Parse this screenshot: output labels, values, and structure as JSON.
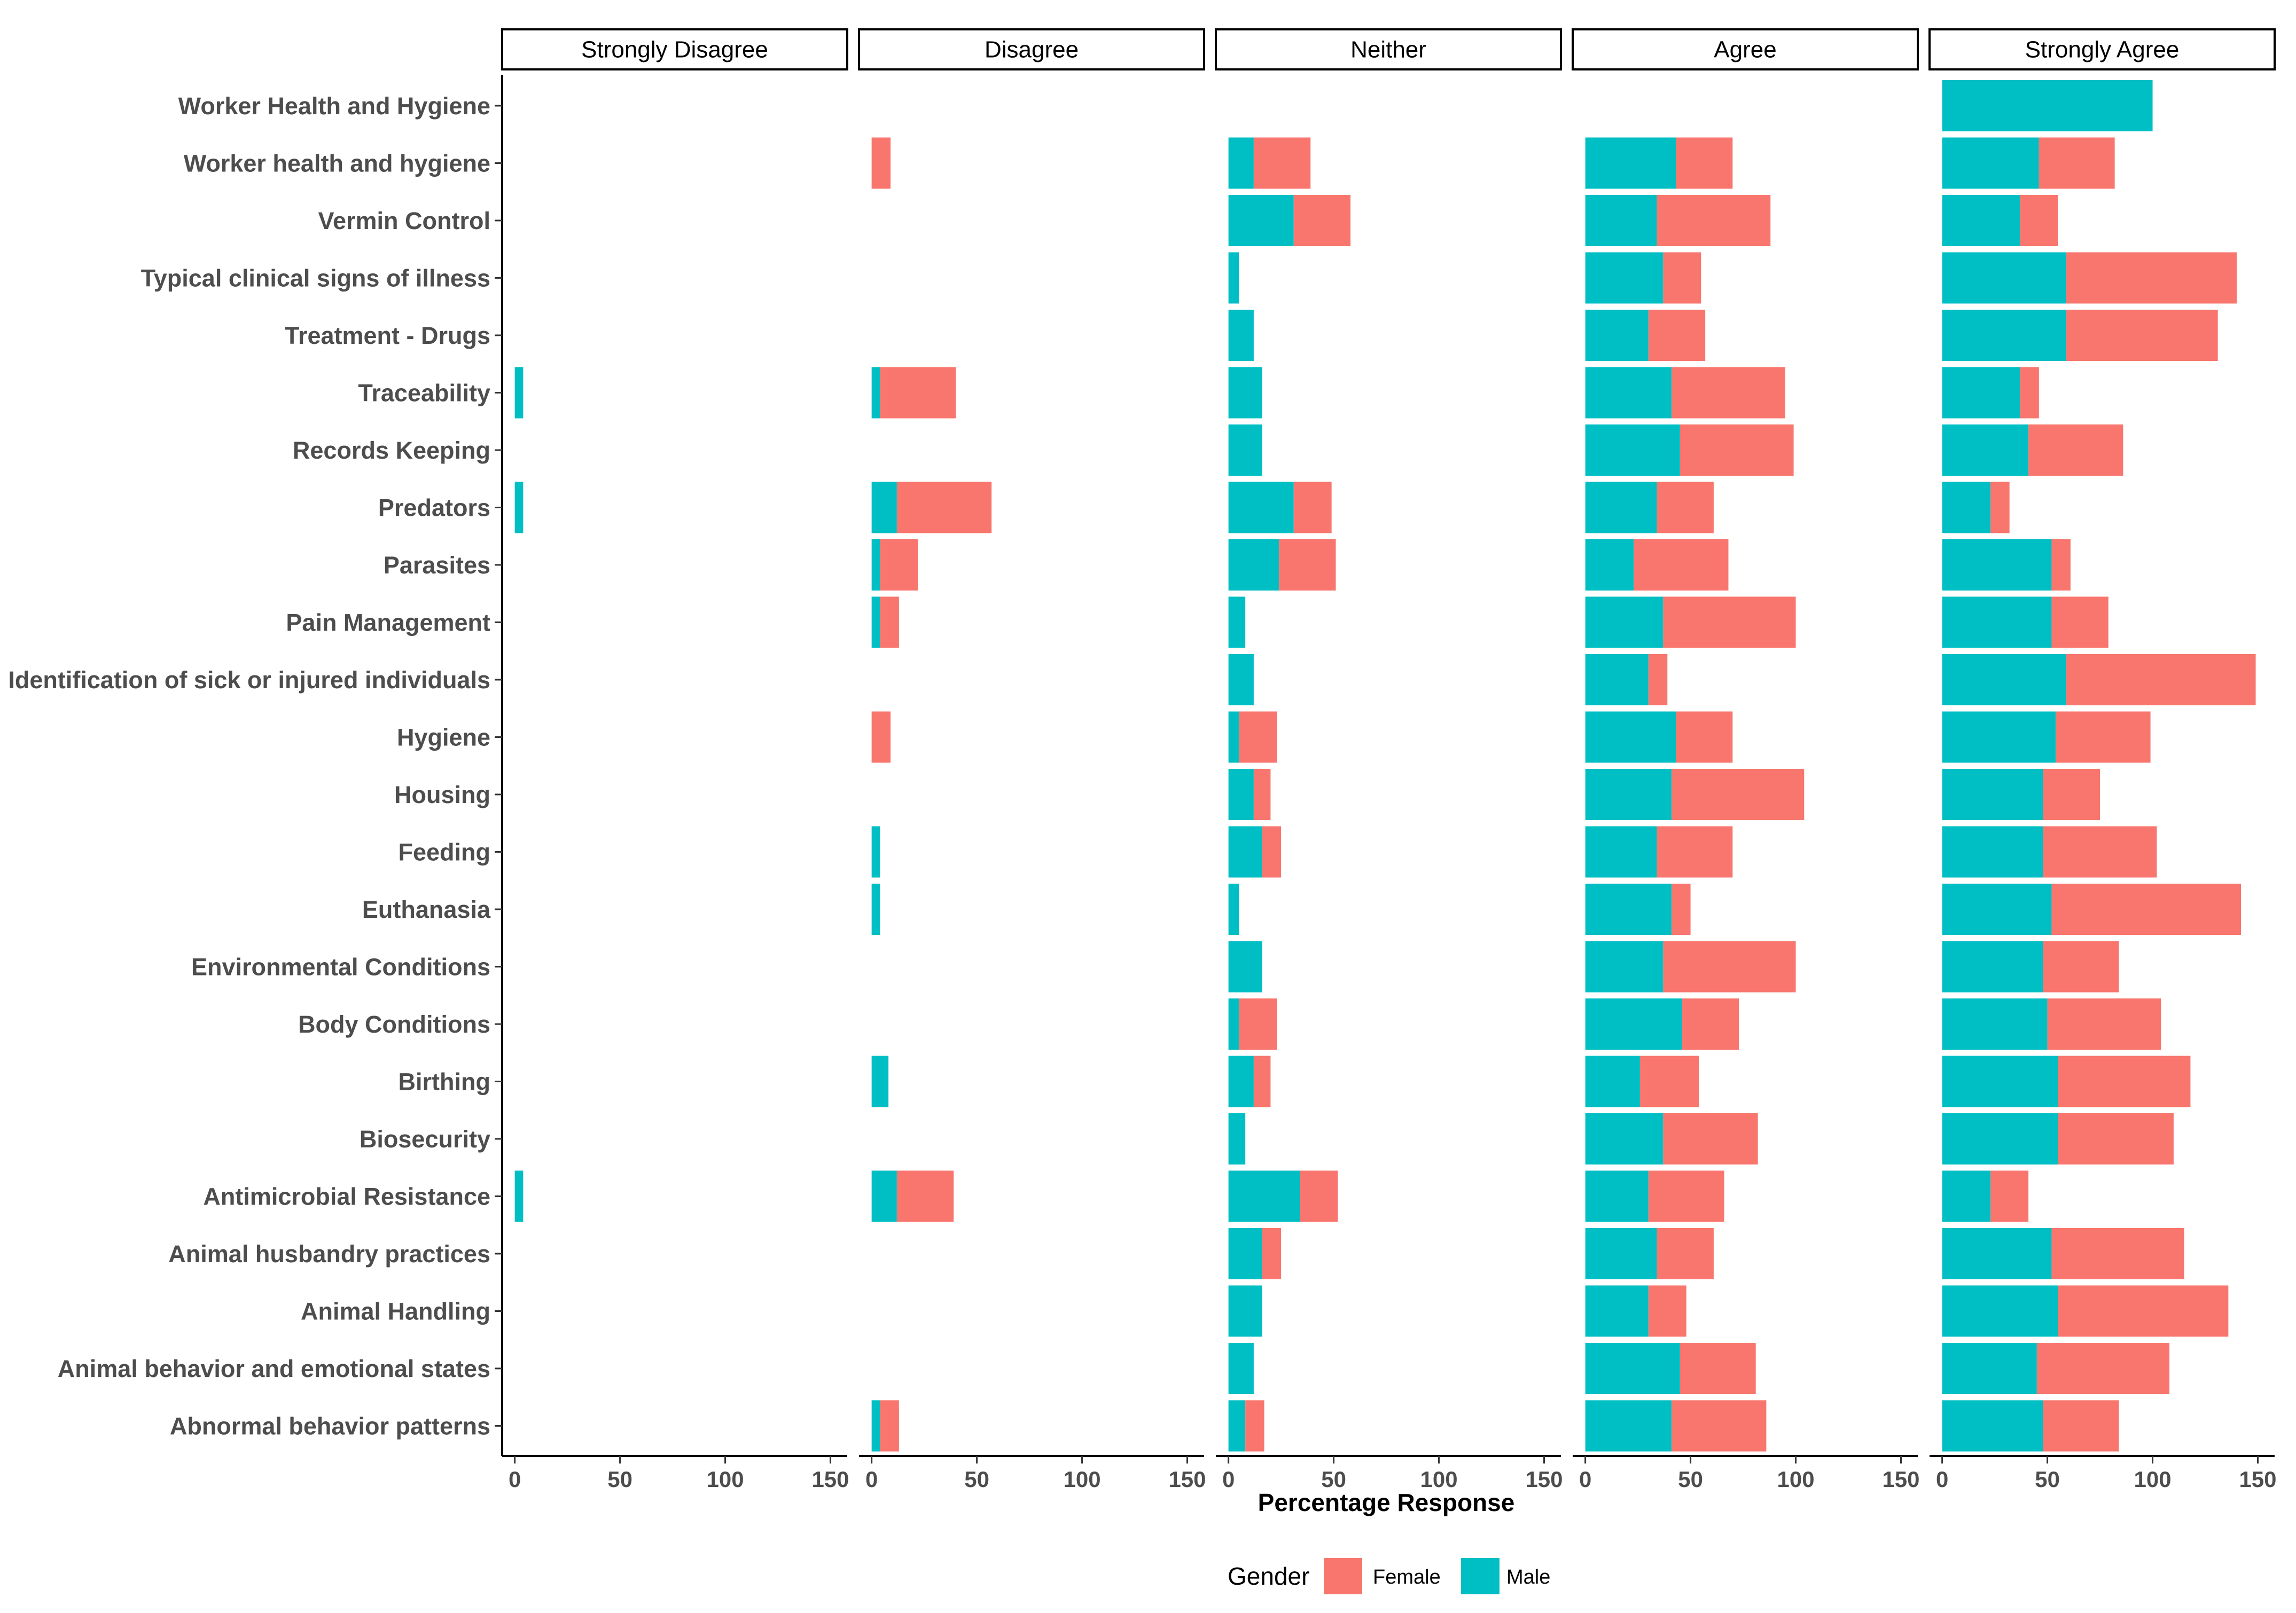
{
  "chart_data": {
    "type": "bar",
    "stacked": true,
    "orientation": "horizontal",
    "facets": [
      "Strongly Disagree",
      "Disagree",
      "Neither",
      "Agree",
      "Strongly Agree"
    ],
    "categories": [
      "Worker Health and Hygiene",
      "Worker health and hygiene",
      "Vermin Control",
      "Typical clinical signs of illness",
      "Treatment - Drugs",
      "Traceability",
      "Records Keeping",
      "Predators",
      "Parasites",
      "Pain Management",
      "Identification of sick or injured individuals",
      "Hygiene",
      "Housing",
      "Feeding",
      "Euthanasia",
      "Environmental Conditions",
      "Body Conditions",
      "Birthing",
      "Biosecurity",
      "Antimicrobial Resistance",
      "Animal husbandry practices",
      "Animal Handling",
      "Animal behavior and emotional states",
      "Abnormal behavior patterns"
    ],
    "series": [
      {
        "name": "Male",
        "color": "#00BFC4",
        "values": {
          "Strongly Disagree": [
            0,
            0,
            0,
            0,
            0,
            4,
            0,
            4,
            0,
            0,
            0,
            0,
            0,
            0,
            0,
            0,
            0,
            0,
            0,
            4,
            0,
            0,
            0,
            0
          ],
          "Disagree": [
            0,
            0,
            0,
            0,
            0,
            4,
            0,
            12,
            4,
            4,
            0,
            0,
            0,
            4,
            4,
            0,
            0,
            8,
            0,
            12,
            0,
            0,
            0,
            4
          ],
          "Neither": [
            0,
            12,
            31,
            5,
            12,
            16,
            16,
            31,
            24,
            8,
            12,
            5,
            12,
            16,
            5,
            16,
            5,
            12,
            8,
            34,
            16,
            16,
            12,
            8
          ],
          "Agree": [
            0,
            43,
            34,
            37,
            30,
            41,
            45,
            34,
            23,
            37,
            30,
            43,
            41,
            34,
            41,
            37,
            46,
            26,
            37,
            30,
            34,
            30,
            45,
            41
          ],
          "Strongly Agree": [
            100,
            46,
            37,
            59,
            59,
            37,
            41,
            23,
            52,
            52,
            59,
            54,
            48,
            48,
            52,
            48,
            50,
            55,
            55,
            23,
            52,
            55,
            45,
            48
          ]
        }
      },
      {
        "name": "Female",
        "color": "#F8766D",
        "values": {
          "Strongly Disagree": [
            0,
            0,
            0,
            0,
            0,
            0,
            0,
            0,
            0,
            0,
            0,
            0,
            0,
            0,
            0,
            0,
            0,
            0,
            0,
            0,
            0,
            0,
            0,
            0
          ],
          "Disagree": [
            0,
            9,
            0,
            0,
            0,
            36,
            0,
            45,
            18,
            9,
            0,
            9,
            0,
            0,
            0,
            0,
            0,
            0,
            0,
            27,
            0,
            0,
            0,
            9
          ],
          "Neither": [
            0,
            27,
            27,
            0,
            0,
            0,
            0,
            18,
            27,
            0,
            0,
            18,
            8,
            9,
            0,
            0,
            18,
            8,
            0,
            18,
            9,
            0,
            0,
            9
          ],
          "Agree": [
            0,
            27,
            54,
            18,
            27,
            54,
            54,
            27,
            45,
            63,
            9,
            27,
            63,
            36,
            9,
            63,
            27,
            28,
            45,
            36,
            27,
            18,
            36,
            45
          ],
          "Strongly Agree": [
            0,
            36,
            18,
            81,
            72,
            9,
            45,
            9,
            9,
            27,
            90,
            45,
            27,
            54,
            90,
            36,
            54,
            63,
            55,
            18,
            63,
            81,
            63,
            36
          ]
        }
      }
    ],
    "xlabel": "Percentage Response",
    "ylabel": "",
    "xlim": [
      -6,
      158
    ],
    "xticks": [
      0,
      50,
      100,
      150
    ],
    "grid": false,
    "legend": {
      "title": "Gender",
      "position": "bottom",
      "entries": [
        {
          "label": "Female",
          "color": "#F8766D"
        },
        {
          "label": "Male",
          "color": "#00BFC4"
        }
      ]
    }
  }
}
